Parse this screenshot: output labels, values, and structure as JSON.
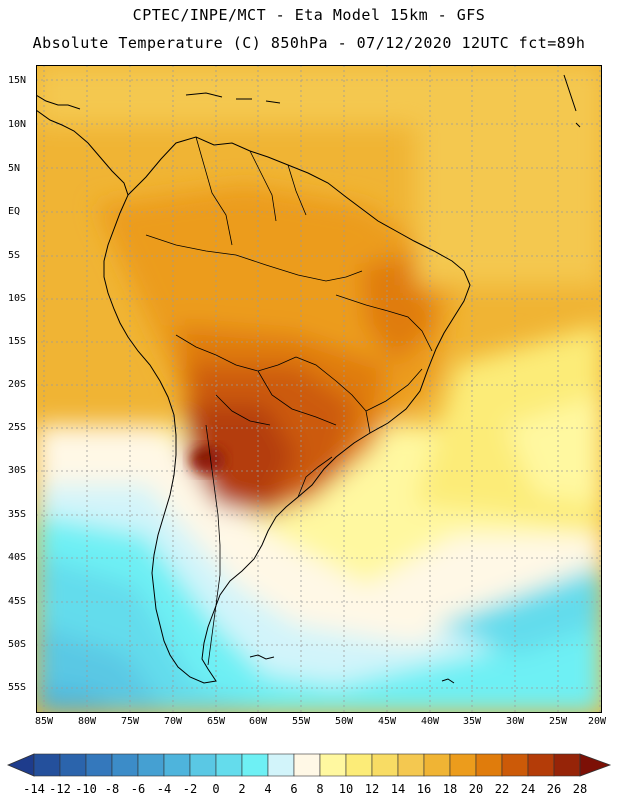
{
  "header": {
    "line1": "CPTEC/INPE/MCT -  Eta Model 15km - GFS",
    "line2": "Absolute Temperature (C) 850hPa - 07/12/2020 12UTC fct=89h"
  },
  "map": {
    "latitude_labels": [
      "15N",
      "10N",
      "5N",
      "EQ",
      "5S",
      "10S",
      "15S",
      "20S",
      "25S",
      "30S",
      "35S",
      "40S",
      "45S",
      "50S",
      "55S"
    ],
    "longitude_labels": [
      "85W",
      "80W",
      "75W",
      "70W",
      "65W",
      "60W",
      "55W",
      "50W",
      "45W",
      "40W",
      "35W",
      "30W",
      "25W",
      "20W"
    ],
    "land_outline_color": "#000000",
    "grid_color": "#9a9a9a"
  },
  "colorbar": {
    "labels": [
      "-14",
      "-12",
      "-10",
      "-8",
      "-6",
      "-4",
      "-2",
      "0",
      "2",
      "4",
      "6",
      "8",
      "10",
      "12",
      "14",
      "16",
      "18",
      "20",
      "22",
      "24",
      "26",
      "28"
    ],
    "colors": [
      "#1e3c8c",
      "#24509c",
      "#2b64ac",
      "#3478bc",
      "#3c8cc8",
      "#45a0d2",
      "#4eb4dc",
      "#5ac8e4",
      "#64dcec",
      "#6ef0f4",
      "#d2f4fa",
      "#fff8e6",
      "#fff8a0",
      "#fcec78",
      "#f8dc64",
      "#f4c850",
      "#f0b434",
      "#ec9c1c",
      "#e07c0c",
      "#cc5a08",
      "#b43c08",
      "#962408",
      "#7c1006"
    ]
  }
}
